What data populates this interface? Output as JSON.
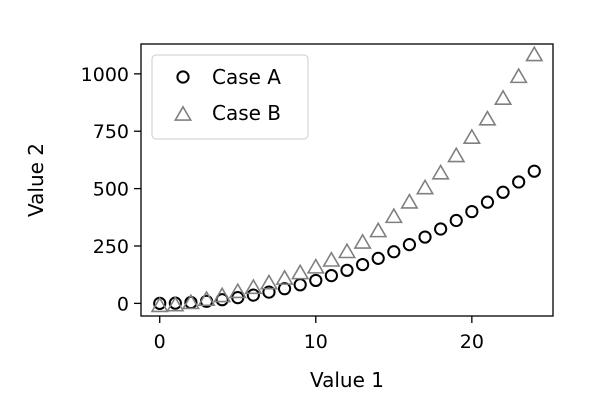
{
  "chart_data": {
    "type": "scatter",
    "xlabel": "Value 1",
    "ylabel": "Value 2",
    "xlim": [
      -1.2,
      25.2
    ],
    "ylim": [
      -55,
      1130
    ],
    "x_ticks": [
      0,
      10,
      20
    ],
    "y_ticks": [
      0,
      250,
      500,
      750,
      1000
    ],
    "grid": false,
    "legend_position": "top-left",
    "x": [
      0,
      1,
      2,
      3,
      4,
      5,
      6,
      7,
      8,
      9,
      10,
      11,
      12,
      13,
      14,
      15,
      16,
      17,
      18,
      19,
      20,
      21,
      22,
      23,
      24
    ],
    "series": [
      {
        "name": "Case A",
        "marker": "circle",
        "color": "#000000",
        "values": [
          0,
          1,
          4,
          9,
          16,
          25,
          36,
          49,
          64,
          81,
          100,
          121,
          144,
          169,
          196,
          225,
          256,
          289,
          324,
          361,
          400,
          441,
          484,
          529,
          576
        ]
      },
      {
        "name": "Case B",
        "marker": "triangle",
        "color": "#808080",
        "values": [
          -13,
          -10,
          0,
          14,
          30,
          48,
          66,
          86,
          106,
          130,
          155,
          185,
          222,
          263,
          313,
          375,
          438,
          500,
          565,
          640,
          720,
          800,
          890,
          985,
          1080
        ]
      }
    ]
  }
}
